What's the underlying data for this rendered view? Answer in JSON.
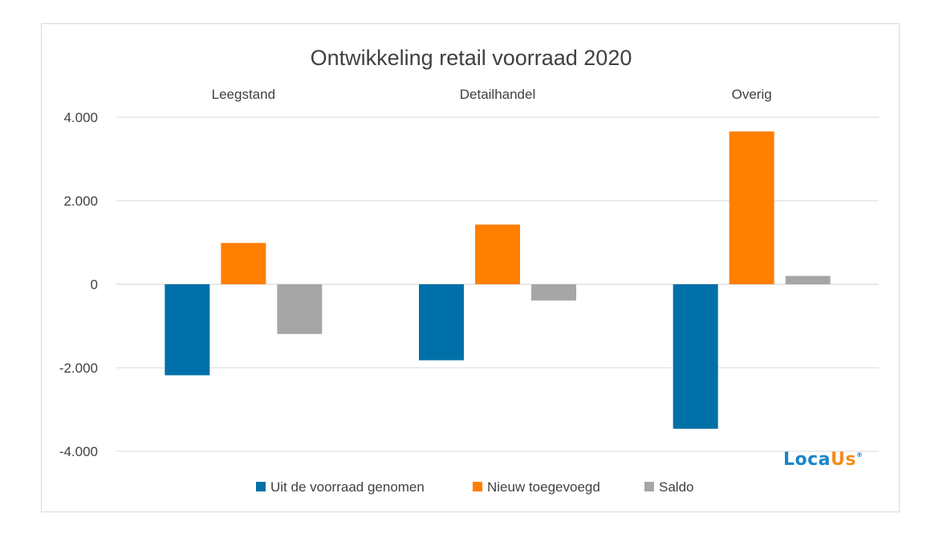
{
  "chart_data": {
    "type": "bar",
    "title": "Ontwikkeling retail voorraad 2020",
    "categories": [
      "Leegstand",
      "Detailhandel",
      "Overig"
    ],
    "series": [
      {
        "name": "Uit de voorraad genomen",
        "color": "#0070a8",
        "values": [
          -2180,
          -1820,
          -3460
        ]
      },
      {
        "name": "Nieuw toegevoegd",
        "color": "#ff7f00",
        "values": [
          990,
          1430,
          3660
        ]
      },
      {
        "name": "Saldo",
        "color": "#a6a6a6",
        "values": [
          -1190,
          -390,
          200
        ]
      }
    ],
    "y_ticks": [
      "4.000",
      "2.000",
      "0",
      "-2.000",
      "-4.000"
    ],
    "ylim": [
      -4000,
      4000
    ],
    "grid": true,
    "legend": "bottom",
    "xlabel": "",
    "ylabel": ""
  },
  "logo": {
    "text_main": "Loca",
    "text_accent": "Us",
    "mark": "®"
  }
}
